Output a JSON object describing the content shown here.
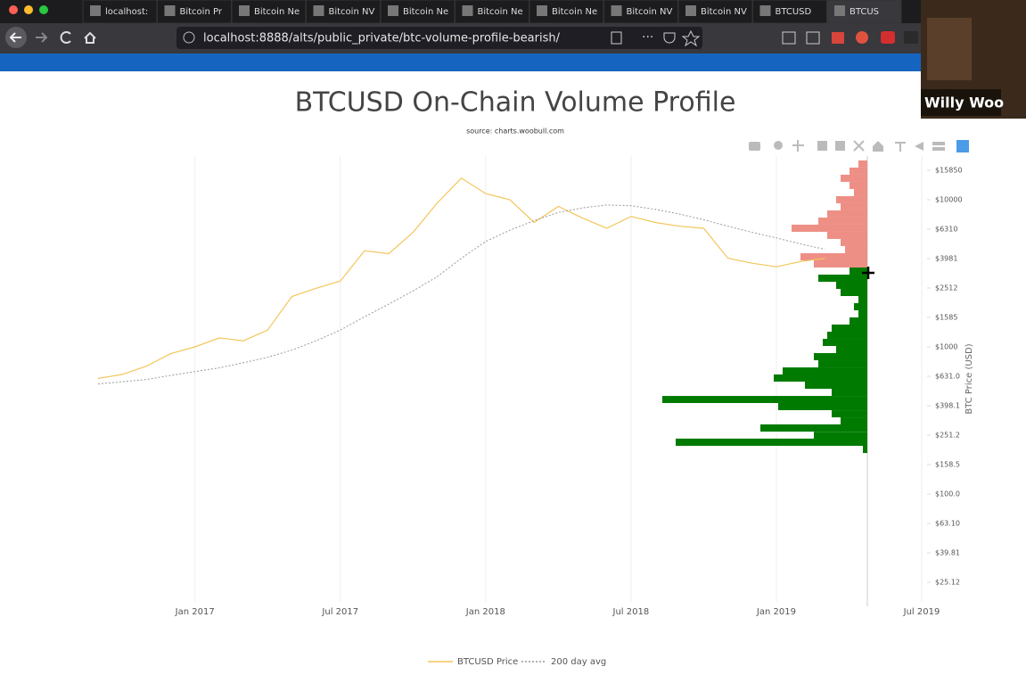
{
  "browser": {
    "tabs": [
      "localhost:",
      "Bitcoin Pr",
      "Bitcoin Ne",
      "Bitcoin NV",
      "Bitcoin Ne",
      "Bitcoin Ne",
      "Bitcoin Ne",
      "Bitcoin NV",
      "Bitcoin NV",
      "BTCUSD",
      "BTCUS"
    ],
    "url": "localhost:8888/alts/public_private/btc-volume-profile-bearish/"
  },
  "webcam": {
    "name": "Willy Woo"
  },
  "chart_data": {
    "type": "line",
    "title": "BTCUSD On-Chain Volume Profile",
    "subtitle": "source: charts.woobull.com",
    "y_label": "BTC Price (USD)",
    "log_y": true,
    "grid": true,
    "xlim": [
      "2016-09",
      "2019-07"
    ],
    "ylim": [
      18.5,
      19800
    ],
    "xticks": [
      {
        "value": "2017-01",
        "label": "Jan 2017"
      },
      {
        "value": "2017-07",
        "label": "Jul 2017"
      },
      {
        "value": "2018-01",
        "label": "Jan 2018"
      },
      {
        "value": "2018-07",
        "label": "Jul 2018"
      },
      {
        "value": "2019-01",
        "label": "Jan 2019"
      },
      {
        "value": "2019-07",
        "label": "Jul 2019"
      }
    ],
    "yticks": [
      {
        "value": 15850,
        "label": "$15850"
      },
      {
        "value": 10000,
        "label": "$10000"
      },
      {
        "value": 6310,
        "label": "$6310"
      },
      {
        "value": 3981,
        "label": "$3981"
      },
      {
        "value": 2512,
        "label": "$2512"
      },
      {
        "value": 1585,
        "label": "$1585"
      },
      {
        "value": 1000,
        "label": "$1000"
      },
      {
        "value": 631,
        "label": "$631.0"
      },
      {
        "value": 398.1,
        "label": "$398.1"
      },
      {
        "value": 251.2,
        "label": "$251.2"
      },
      {
        "value": 158.5,
        "label": "$158.5"
      },
      {
        "value": 100,
        "label": "$100.0"
      },
      {
        "value": 63.1,
        "label": "$63.10"
      },
      {
        "value": 39.81,
        "label": "$39.81"
      },
      {
        "value": 25.12,
        "label": "$25.12"
      }
    ],
    "x": [
      "2016-09",
      "2016-10",
      "2016-11",
      "2016-12",
      "2017-01",
      "2017-02",
      "2017-03",
      "2017-04",
      "2017-05",
      "2017-06",
      "2017-07",
      "2017-08",
      "2017-09",
      "2017-10",
      "2017-11",
      "2017-12",
      "2018-01",
      "2018-02",
      "2018-03",
      "2018-04",
      "2018-05",
      "2018-06",
      "2018-07",
      "2018-08",
      "2018-09",
      "2018-10",
      "2018-11",
      "2018-12",
      "2019-01",
      "2019-02",
      "2019-03"
    ],
    "series": [
      {
        "name": "BTCUSD Price",
        "color": "#f2c65a",
        "dash": false,
        "values": [
          610,
          650,
          740,
          900,
          1000,
          1150,
          1100,
          1300,
          2200,
          2500,
          2800,
          4500,
          4300,
          6000,
          9500,
          14000,
          11000,
          10000,
          7000,
          9000,
          7500,
          6400,
          7700,
          7000,
          6600,
          6400,
          4000,
          3700,
          3500,
          3800,
          4000
        ]
      },
      {
        "name": "200 day avg",
        "color": "#9a9a9a",
        "dash": true,
        "values": [
          560,
          580,
          600,
          640,
          680,
          720,
          780,
          850,
          950,
          1100,
          1300,
          1600,
          1950,
          2400,
          3000,
          4000,
          5200,
          6200,
          7200,
          8200,
          8800,
          9200,
          9100,
          8600,
          8000,
          7300,
          6600,
          6000,
          5500,
          5000,
          4600
        ]
      }
    ],
    "volume_profile": {
      "prices": [
        17480,
        15630,
        13980,
        12500,
        11180,
        10000,
        8943,
        8000,
        7153,
        6400,
        5722,
        5118,
        4577,
        4094,
        3661,
        3274,
        2929,
        2619,
        2342,
        2095,
        1874,
        1676,
        1499,
        1341,
        1199,
        1072,
        959,
        858,
        767,
        686,
        614,
        549,
        491,
        439,
        393,
        351,
        314,
        281,
        251,
        225,
        201
      ],
      "values": [
        10,
        20,
        30,
        20,
        15,
        35,
        30,
        45,
        55,
        85,
        45,
        30,
        25,
        75,
        60,
        20,
        55,
        35,
        30,
        10,
        15,
        10,
        20,
        40,
        45,
        50,
        35,
        60,
        55,
        95,
        105,
        70,
        40,
        230,
        100,
        40,
        30,
        120,
        60,
        215,
        5
      ],
      "colors": [
        "#ee8f86",
        "#ee8f86",
        "#ee8f86",
        "#ee8f86",
        "#ee8f86",
        "#ee8f86",
        "#ee8f86",
        "#ee8f86",
        "#ee8f86",
        "#ee8f86",
        "#ee8f86",
        "#ee8f86",
        "#ee8f86",
        "#ee8f86",
        "#ee8f86",
        "#007a00",
        "#007a00",
        "#007a00",
        "#007a00",
        "#007a00",
        "#007a00",
        "#007a00",
        "#007a00",
        "#007a00",
        "#007a00",
        "#007a00",
        "#007a00",
        "#007a00",
        "#007a00",
        "#007a00",
        "#007a00",
        "#007a00",
        "#007a00",
        "#007a00",
        "#007a00",
        "#007a00",
        "#007a00",
        "#007a00",
        "#007a00",
        "#007a00",
        "#007a00"
      ]
    }
  }
}
